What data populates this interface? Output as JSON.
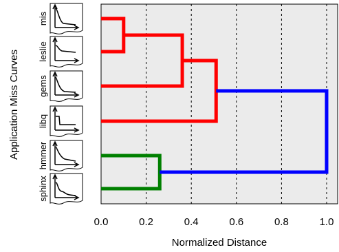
{
  "chart_data": {
    "type": "dendrogram",
    "xlabel": "Normalized Distance",
    "ylabel": "Application Miss Curves",
    "xlim": [
      0.0,
      1.0
    ],
    "xticks": [
      "0.0",
      "0.2",
      "0.4",
      "0.6",
      "0.8",
      "1.0"
    ],
    "grid": "vertical dotted",
    "leaves": [
      "mis",
      "leslie",
      "gems",
      "libq",
      "hmmer",
      "sphinx"
    ],
    "merges": [
      {
        "left": "mis",
        "right": "leslie",
        "distance": 0.1,
        "color": "#ff0000"
      },
      {
        "left": "mis+leslie",
        "right": "gems",
        "distance": 0.36,
        "color": "#ff0000"
      },
      {
        "left": "mis+leslie+gems",
        "right": "libq",
        "distance": 0.51,
        "color": "#ff0000"
      },
      {
        "left": "hmmer",
        "right": "sphinx",
        "distance": 0.26,
        "color": "#008000"
      },
      {
        "left": "mis+leslie+gems+libq",
        "right": "hmmer+sphinx",
        "distance": 1.0,
        "color": "#0000ff"
      }
    ],
    "colors": {
      "cluster_a": "#ff0000",
      "cluster_b": "#008000",
      "root": "#0000ff",
      "background": "#ebebeb"
    }
  }
}
